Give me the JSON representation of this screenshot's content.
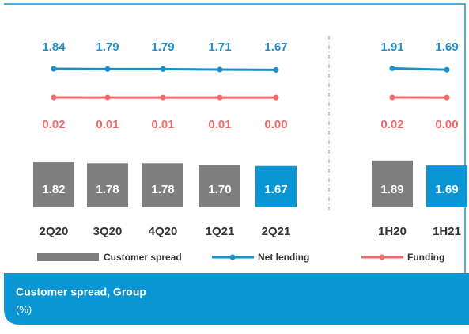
{
  "chart_data": {
    "type": "bar-line",
    "title": "Customer spread, Group",
    "subtitle": "(%)",
    "categories": [
      "2Q20",
      "3Q20",
      "4Q20",
      "1Q21",
      "2Q21",
      null,
      "1H20",
      "1H21"
    ],
    "series": [
      {
        "name": "Customer spread",
        "type": "bar",
        "color": "#7f7f7f",
        "colors": [
          "#7f7f7f",
          "#7f7f7f",
          "#7f7f7f",
          "#7f7f7f",
          "#0a95d5",
          null,
          "#7f7f7f",
          "#0a95d5"
        ],
        "values": [
          1.82,
          1.78,
          1.78,
          1.7,
          1.67,
          null,
          1.89,
          1.69
        ],
        "value_labels": [
          "1.82",
          "1.78",
          "1.78",
          "1.70",
          "1.67",
          null,
          "1.89",
          "1.69"
        ]
      },
      {
        "name": "Net lending",
        "type": "line",
        "color": "#1b8fc8",
        "values": [
          1.84,
          1.79,
          1.79,
          1.71,
          1.67,
          null,
          1.91,
          1.69
        ],
        "value_labels": [
          "1.84",
          "1.79",
          "1.79",
          "1.71",
          "1.67",
          null,
          "1.91",
          "1.69"
        ]
      },
      {
        "name": "Funding",
        "type": "line",
        "color": "#f06a6a",
        "values": [
          0.02,
          0.01,
          0.01,
          0.01,
          0.0,
          null,
          0.02,
          0.0
        ],
        "value_labels": [
          "0.02",
          "0.01",
          "0.01",
          "0.01",
          "0.00",
          null,
          "0.02",
          "0.00"
        ]
      }
    ]
  }
}
